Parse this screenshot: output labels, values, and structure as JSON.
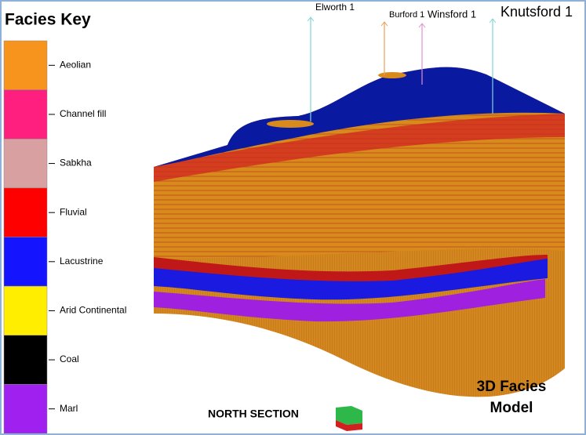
{
  "legend": {
    "title": "Facies Key",
    "items": [
      {
        "label": "Aeolian",
        "color": "#f7941d"
      },
      {
        "label": "Channel fill",
        "color": "#ff1f7f"
      },
      {
        "label": "Sabkha",
        "color": "#d8a0a0"
      },
      {
        "label": "Fluvial",
        "color": "#ff0000"
      },
      {
        "label": "Lacustrine",
        "color": "#1414ff"
      },
      {
        "label": "Arid Continental",
        "color": "#ffee00"
      },
      {
        "label": "Coal",
        "color": "#000000"
      },
      {
        "label": "Marl",
        "color": "#a020f0"
      }
    ]
  },
  "wells": [
    {
      "label": "Elworth 1"
    },
    {
      "label": "Burford 1"
    },
    {
      "label": "Winsford 1"
    },
    {
      "label": "Knutsford 1"
    }
  ],
  "model_label": "3D Facies Model",
  "section_label": "NORTH SECTION"
}
